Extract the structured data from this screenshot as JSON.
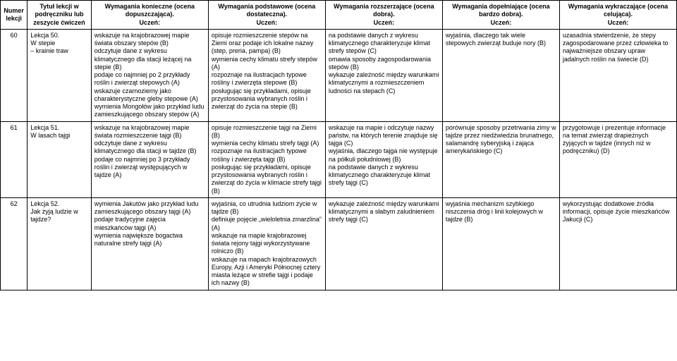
{
  "headers": {
    "num": "Numer lekcji",
    "title": "Tytuł lekcji w podręczniku lub zeszycie ćwiczeń",
    "req1": "Wymagania konieczne (ocena dopuszczająca).",
    "req2": "Wymagania podstawowe (ocena dostateczna).",
    "req3": "Wymagania rozszerzające (ocena dobra).",
    "req4": "Wymagania dopełniające (ocena bardzo dobra).",
    "req5": "Wymagania wykraczające (ocena celująca).",
    "sub": "Uczeń:"
  },
  "rows": [
    {
      "num": "60",
      "title": "Lekcja 50.\nW stepie\n– krainie traw",
      "req1": "wskazuje na krajobrazowej mapie świata obszary stepów (B)\nodczytuje dane z wykresu klimatycznego dla stacji leżącej na stepie (B)\npodaje co najmniej po 2 przykłady roślin i zwierząt stepowych (A)\nwskazuje czarnoziemy jako charakterystyczne gleby stepowe (A)\nwymienia Mongołów jako przykład ludu zamieszkującego obszary stepów (A)",
      "req2": "opisuje rozmieszczenie stepów na Ziemi oraz podaje ich lokalne nazwy (step, preria, pampa) (B)\nwymienia cechy klimatu strefy stepów (A)\nrozpoznaje na ilustracjach typowe rośliny i zwierzęta stepowe (B)\nposługując się przykładami, opisuje przystosowania wybranych roślin i zwierząt do życia na stepie (B)",
      "req3": "na podstawie danych z wykresu klimatycznego charakteryzuje klimat strefy stepów (C)\nomawia sposoby zagospodarowania stepów (B)\nwykazuje zależność między warunkami klimatycznymi a rozmieszczeniem ludności na stepach (C)",
      "req4": "wyjaśnia, dlaczego tak wiele stepowych zwierząt buduje nory (B)",
      "req5": "uzasadnia stwierdzenie, że stepy zagospodarowane przez człowieka to najważniejsze obszary upraw jadalnych roślin na świecie (D)"
    },
    {
      "num": "61",
      "title": "Lekcja 51.\nW lasach tajgi",
      "req1": "wskazuje na krajobrazowej mapie świata rozmieszczenie tajgi (B)\nodczytuje dane z wykresu klimatycznego dla stacji w tajdze (B)\npodaje co najmniej po 3 przykłady roślin i zwierząt występujących w tajdze (A)",
      "req2": "opisuje rozmieszczenie tajgi na Ziemi (B)\nwymienia cechy klimatu strefy tajgi (A)\nrozpoznaje na ilustracjach typowe rośliny i zwierzęta tajgi (B)\nposługując się przykładami, opisuje przystosowania wybranych roślin i zwierząt do życia w klimacie strefy tajgi (B)",
      "req3": "wskazuje na mapie i odczytuje nazwy państw, na których terenie znajduje się tajga (C)\nwyjaśnia, dlaczego tajga nie występuje na półkuli południowej (B)\nna podstawie danych z wykresu klimatycznego charakteryzuje klimat strefy tajgi (C)",
      "req4": "porównuje sposoby przetrwania zimy w tajdze przez niedźwiedzia brunatnego, salamandrę syberyjską i zająca amerykańskiego (C)",
      "req5": "przygotowuje i prezentuje informacje na temat zwierząt drapieżnych żyjących w tajdze (innych niż w podręczniku) (D)"
    },
    {
      "num": "62",
      "title": "Lekcja 52.\nJak żyją ludzie w tajdze?",
      "req1": "wymienia Jakutów jako przykład ludu zamieszkującego obszary tajgi (A)\npodaje tradycyjne zajęcia mieszkańców tajgi (A)\nwymienia największe bogactwa naturalne strefy tajgi (A)",
      "req2": "wyjaśnia, co utrudnia ludziom życie w tajdze (B)\ndefiniuje pojęcie „wieloletnia zmarzlina” (A)\nwskazuje na mapie krajobrazowej świata rejony tajgi wykorzystywane rolniczo (B)\nwskazuje na mapach krajobrazowych Europy, Azji i Ameryki Północnej cztery miasta leżące w strefie tajgi i podaje ich nazwy (B)",
      "req3": "wykazuje zależność między warunkami klimatycznymi a słabym zaludnieniem strefy tajgi (C)",
      "req4": "wyjaśnia mechanizm szybkiego niszczenia dróg i linii kolejowych w tajdze (B)",
      "req5": "wykorzystując dodatkowe źródła informacji, opisuje życie mieszkańców Jakucji (C)"
    }
  ]
}
